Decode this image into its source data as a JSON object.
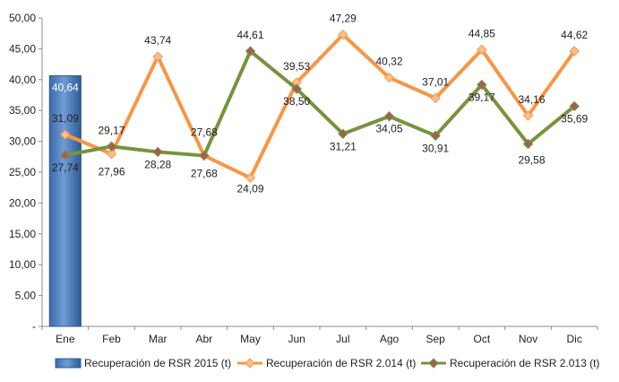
{
  "chart_data": {
    "type": "bar+line",
    "categories": [
      "Ene",
      "Feb",
      "Mar",
      "Abr",
      "May",
      "Jun",
      "Jul",
      "Ago",
      "Sep",
      "Oct",
      "Nov",
      "Dic"
    ],
    "ylim": [
      0,
      50
    ],
    "y_ticks": [
      "-",
      "5,00",
      "10,00",
      "15,00",
      "20,00",
      "25,00",
      "30,00",
      "35,00",
      "40,00",
      "45,00",
      "50,00"
    ],
    "grid": false,
    "legend_position": "bottom",
    "series": [
      {
        "name": "Recuperación de RSR 2015 (t)",
        "kind": "bar",
        "color": "#4f81bd",
        "values": [
          40.64,
          null,
          null,
          null,
          null,
          null,
          null,
          null,
          null,
          null,
          null,
          null
        ],
        "labels": [
          "40,64",
          "",
          "",
          "",
          "",
          "",
          "",
          "",
          "",
          "",
          "",
          ""
        ]
      },
      {
        "name": "Recuperación de RSR 2.014 (t)",
        "kind": "line",
        "color": "#f79646",
        "marker_color": "#fac08f",
        "values": [
          31.09,
          27.96,
          43.74,
          27.68,
          24.09,
          39.53,
          47.29,
          40.32,
          37.01,
          44.85,
          34.16,
          44.62
        ],
        "labels": [
          "31,09",
          "27,96",
          "43,74",
          "27,68",
          "24,09",
          "39,53",
          "47,29",
          "40,32",
          "37,01",
          "44,85",
          "34,16",
          "44,62"
        ]
      },
      {
        "name": "Recuperación de RSR 2.013 (t)",
        "kind": "line",
        "color": "#77933c",
        "marker_color": "#a85c52",
        "values": [
          27.74,
          29.17,
          28.28,
          27.68,
          44.61,
          38.5,
          31.21,
          34.05,
          30.91,
          39.17,
          29.58,
          35.69
        ],
        "labels": [
          "27,74",
          "29,17",
          "28,28",
          "27,68",
          "44,61",
          "38,50",
          "31,21",
          "34,05",
          "30,91",
          "39,17",
          "29,58",
          "35,69"
        ]
      }
    ]
  }
}
